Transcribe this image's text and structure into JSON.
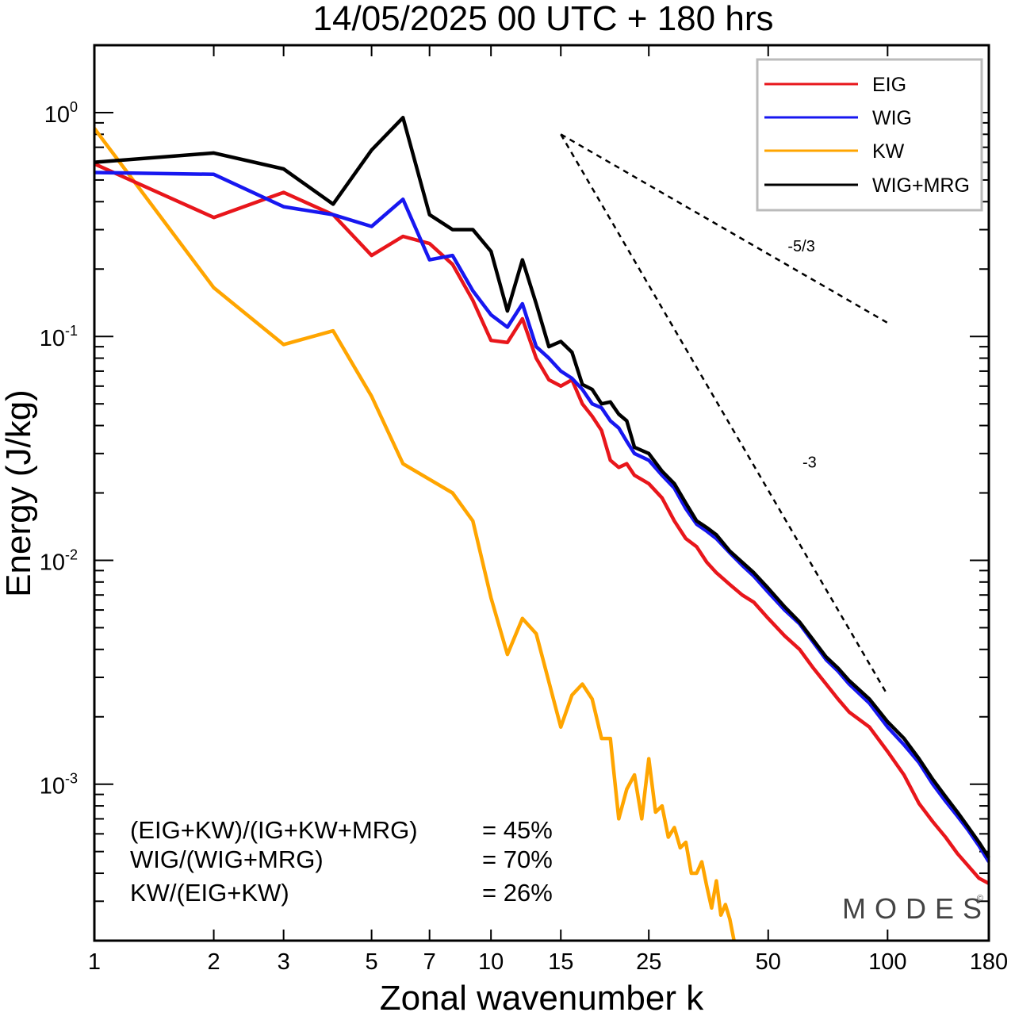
{
  "chart_data": {
    "type": "line",
    "title": "14/05/2025  00 UTC  + 180 hrs",
    "xlabel": "Zonal wavenumber k",
    "ylabel": "Energy (J/kg)",
    "xscale": "log",
    "yscale": "log",
    "xlim": [
      1,
      180
    ],
    "ylim": [
      0.0002,
      2.0
    ],
    "xticks": [
      1,
      2,
      3,
      5,
      7,
      10,
      15,
      25,
      50,
      100,
      180
    ],
    "xtick_labels": [
      "1",
      "2",
      "3",
      "5",
      "7",
      "10",
      "15",
      "25",
      "50",
      "100",
      "180"
    ],
    "yticks": [
      {
        "value": 1.0,
        "base": "10",
        "exp": "0"
      },
      {
        "value": 0.1,
        "base": "10",
        "exp": "-1"
      },
      {
        "value": 0.01,
        "base": "10",
        "exp": "-2"
      },
      {
        "value": 0.001,
        "base": "10",
        "exp": "-3"
      }
    ],
    "legend_position": "top-right",
    "series": [
      {
        "name": "EIG",
        "color": "#e8161b",
        "points": [
          [
            1,
            0.59
          ],
          [
            2,
            0.34
          ],
          [
            3,
            0.44
          ],
          [
            4,
            0.35
          ],
          [
            5,
            0.23
          ],
          [
            6,
            0.28
          ],
          [
            7,
            0.26
          ],
          [
            8,
            0.21
          ],
          [
            9,
            0.145
          ],
          [
            10,
            0.096
          ],
          [
            11,
            0.094
          ],
          [
            12,
            0.12
          ],
          [
            13,
            0.08
          ],
          [
            14,
            0.064
          ],
          [
            15,
            0.06
          ],
          [
            16,
            0.064
          ],
          [
            17,
            0.05
          ],
          [
            18,
            0.044
          ],
          [
            19,
            0.038
          ],
          [
            20,
            0.028
          ],
          [
            21,
            0.026
          ],
          [
            22,
            0.027
          ],
          [
            23,
            0.024
          ],
          [
            25,
            0.022
          ],
          [
            27,
            0.019
          ],
          [
            29,
            0.015
          ],
          [
            31,
            0.0125
          ],
          [
            33,
            0.0115
          ],
          [
            35,
            0.0098
          ],
          [
            37,
            0.0088
          ],
          [
            40,
            0.0078
          ],
          [
            43,
            0.007
          ],
          [
            46,
            0.0065
          ],
          [
            50,
            0.0055
          ],
          [
            55,
            0.0046
          ],
          [
            60,
            0.004
          ],
          [
            65,
            0.0033
          ],
          [
            70,
            0.0028
          ],
          [
            75,
            0.0024
          ],
          [
            80,
            0.0021
          ],
          [
            90,
            0.0018
          ],
          [
            100,
            0.0014
          ],
          [
            110,
            0.0011
          ],
          [
            120,
            0.00082
          ],
          [
            130,
            0.00068
          ],
          [
            140,
            0.00058
          ],
          [
            150,
            0.00049
          ],
          [
            160,
            0.00043
          ],
          [
            170,
            0.00038
          ],
          [
            180,
            0.00036
          ]
        ]
      },
      {
        "name": "WIG",
        "color": "#1717f0",
        "points": [
          [
            1,
            0.54
          ],
          [
            2,
            0.53
          ],
          [
            3,
            0.38
          ],
          [
            4,
            0.35
          ],
          [
            5,
            0.31
          ],
          [
            6,
            0.41
          ],
          [
            7,
            0.22
          ],
          [
            8,
            0.23
          ],
          [
            9,
            0.16
          ],
          [
            10,
            0.125
          ],
          [
            11,
            0.11
          ],
          [
            12,
            0.14
          ],
          [
            13,
            0.09
          ],
          [
            14,
            0.08
          ],
          [
            15,
            0.07
          ],
          [
            16,
            0.065
          ],
          [
            17,
            0.058
          ],
          [
            18,
            0.05
          ],
          [
            19,
            0.048
          ],
          [
            20,
            0.042
          ],
          [
            21,
            0.039
          ],
          [
            22,
            0.034
          ],
          [
            23,
            0.03
          ],
          [
            25,
            0.028
          ],
          [
            27,
            0.024
          ],
          [
            29,
            0.021
          ],
          [
            31,
            0.017
          ],
          [
            33,
            0.0145
          ],
          [
            35,
            0.0135
          ],
          [
            37,
            0.0125
          ],
          [
            40,
            0.0108
          ],
          [
            43,
            0.0095
          ],
          [
            46,
            0.0085
          ],
          [
            50,
            0.0072
          ],
          [
            55,
            0.006
          ],
          [
            60,
            0.0052
          ],
          [
            65,
            0.0043
          ],
          [
            70,
            0.0036
          ],
          [
            75,
            0.0032
          ],
          [
            80,
            0.0028
          ],
          [
            90,
            0.0023
          ],
          [
            100,
            0.0018
          ],
          [
            110,
            0.0015
          ],
          [
            120,
            0.00125
          ],
          [
            130,
            0.001
          ],
          [
            140,
            0.00084
          ],
          [
            150,
            0.00072
          ],
          [
            160,
            0.00062
          ],
          [
            170,
            0.00053
          ],
          [
            180,
            0.00045
          ]
        ]
      },
      {
        "name": "KW",
        "color": "#ffa500",
        "points": [
          [
            1,
            0.85
          ],
          [
            2,
            0.165
          ],
          [
            3,
            0.092
          ],
          [
            4,
            0.106
          ],
          [
            5,
            0.054
          ],
          [
            6,
            0.027
          ],
          [
            7,
            0.023
          ],
          [
            8,
            0.02
          ],
          [
            9,
            0.015
          ],
          [
            10,
            0.0068
          ],
          [
            11,
            0.0038
          ],
          [
            12,
            0.0055
          ],
          [
            13,
            0.0047
          ],
          [
            15,
            0.0018
          ],
          [
            16,
            0.0025
          ],
          [
            17,
            0.0028
          ],
          [
            18,
            0.0024
          ],
          [
            19,
            0.0016
          ],
          [
            20,
            0.0016
          ],
          [
            21,
            0.0007
          ],
          [
            22,
            0.00095
          ],
          [
            23,
            0.0011
          ],
          [
            24,
            0.0007
          ],
          [
            25,
            0.0013
          ],
          [
            26,
            0.00075
          ],
          [
            27,
            0.0008
          ],
          [
            28,
            0.00058
          ],
          [
            29,
            0.00064
          ],
          [
            30,
            0.00052
          ],
          [
            31,
            0.00055
          ],
          [
            32,
            0.0004
          ],
          [
            33,
            0.0004
          ],
          [
            34,
            0.00045
          ],
          [
            35,
            0.00035
          ],
          [
            36,
            0.00028
          ],
          [
            37,
            0.00037
          ],
          [
            38,
            0.00026
          ],
          [
            39,
            0.00029
          ],
          [
            40,
            0.00025
          ],
          [
            41,
            0.0002
          ]
        ]
      },
      {
        "name": "WIG+MRG",
        "color": "#000000",
        "points": [
          [
            1,
            0.6
          ],
          [
            2,
            0.66
          ],
          [
            3,
            0.56
          ],
          [
            4,
            0.39
          ],
          [
            5,
            0.68
          ],
          [
            6,
            0.95
          ],
          [
            7,
            0.35
          ],
          [
            8,
            0.3
          ],
          [
            9,
            0.3
          ],
          [
            10,
            0.24
          ],
          [
            11,
            0.13
          ],
          [
            12,
            0.22
          ],
          [
            13,
            0.14
          ],
          [
            14,
            0.09
          ],
          [
            15,
            0.095
          ],
          [
            16,
            0.085
          ],
          [
            17,
            0.061
          ],
          [
            18,
            0.058
          ],
          [
            19,
            0.05
          ],
          [
            20,
            0.051
          ],
          [
            21,
            0.045
          ],
          [
            22,
            0.042
          ],
          [
            23,
            0.032
          ],
          [
            25,
            0.03
          ],
          [
            27,
            0.025
          ],
          [
            29,
            0.022
          ],
          [
            31,
            0.018
          ],
          [
            33,
            0.015
          ],
          [
            35,
            0.014
          ],
          [
            37,
            0.013
          ],
          [
            40,
            0.011
          ],
          [
            43,
            0.0098
          ],
          [
            46,
            0.0088
          ],
          [
            50,
            0.0075
          ],
          [
            55,
            0.0062
          ],
          [
            60,
            0.0053
          ],
          [
            65,
            0.0044
          ],
          [
            70,
            0.0037
          ],
          [
            75,
            0.0033
          ],
          [
            80,
            0.0029
          ],
          [
            90,
            0.0024
          ],
          [
            100,
            0.0019
          ],
          [
            110,
            0.0016
          ],
          [
            120,
            0.0013
          ],
          [
            130,
            0.00105
          ],
          [
            140,
            0.00088
          ],
          [
            150,
            0.00075
          ],
          [
            160,
            0.00064
          ],
          [
            170,
            0.00055
          ],
          [
            180,
            0.00047
          ]
        ]
      }
    ],
    "reference_lines": [
      {
        "label": "-5/3",
        "from": [
          15,
          0.8
        ],
        "to": [
          100,
          0.115
        ],
        "label_at": [
          56,
          0.24
        ]
      },
      {
        "label": "-3",
        "from": [
          15,
          0.8
        ],
        "to": [
          100,
          0.0025
        ],
        "label_at": [
          61,
          0.026
        ]
      }
    ]
  },
  "stats": [
    {
      "label": "(EIG+KW)/(IG+KW+MRG)",
      "value": "= 45%"
    },
    {
      "label": "WIG/(WIG+MRG)",
      "value": "= 70%"
    },
    {
      "label": "KW/(EIG+KW)",
      "value": "= 26%"
    }
  ],
  "brand": {
    "name": "MODES",
    "mark": "©"
  }
}
